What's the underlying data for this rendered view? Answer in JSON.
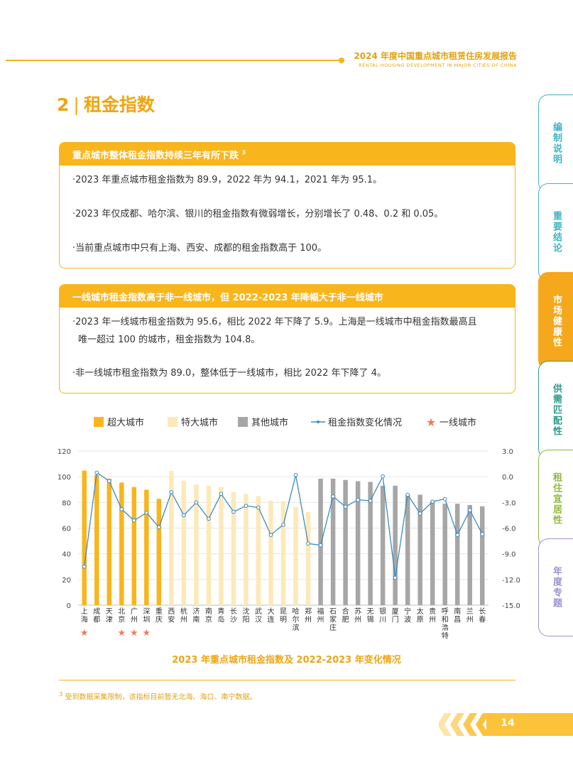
{
  "header": {
    "title": "2024 年度中国重点城市租赁住房发展报告",
    "subtitle": "RENTAL HOUSING DEVELOPMENT IN MAJOR CITIES OF CHINA"
  },
  "section": {
    "number": "2",
    "title": "租金指数"
  },
  "box1": {
    "heading": "重点城市整体租金指数持续三年有所下跌",
    "heading_sup": "3",
    "items": [
      "·2023 年重点城市租金指数为 89.9，2022 年为 94.1，2021 年为 95.1。",
      "·2023 年仅成都、哈尔滨、银川的租金指数有微弱增长，分别增长了 0.48、0.2 和 0.05。",
      "·当前重点城市中只有上海、西安、成都的租金指数高于 100。"
    ]
  },
  "box2": {
    "heading": "一线城市租金指数高于非一线城市，但 2022-2023 年降幅大于非一线城市",
    "items": [
      "·2023 年一线城市租金指数为 95.6，相比 2022 年下降了 5.9。上海是一线城市中租金指数最高且",
      "唯一超过 100 的城市，租金指数为 104.8。",
      "·非一线城市租金指数为 89.0，整体低于一线城市，相比 2022 年下降了 4。"
    ]
  },
  "side_tabs": [
    {
      "label": "编制说明",
      "color": "#3fb4c8",
      "active": false
    },
    {
      "label": "重要结论",
      "color": "#3fb4c8",
      "active": false
    },
    {
      "label": "市场健康性",
      "color": "#f5a81c",
      "active": true
    },
    {
      "label": "供需匹配性",
      "color": "#2b9b8c",
      "active": false
    },
    {
      "label": "租住宜居性",
      "color": "#8fb93a",
      "active": false
    },
    {
      "label": "年度专题",
      "color": "#9c93cf",
      "active": false
    }
  ],
  "chart_data": {
    "type": "bar",
    "categories": [
      "上海",
      "成都",
      "天津",
      "北京",
      "广州",
      "深圳",
      "重庆",
      "西安",
      "杭州",
      "济南",
      "南京",
      "青岛",
      "长沙",
      "沈阳",
      "武汉",
      "大连",
      "昆明",
      "哈尔滨",
      "郑州",
      "福州",
      "石家庄",
      "合肥",
      "苏州",
      "无锡",
      "银川",
      "厦门",
      "宁波",
      "太原",
      "贵州",
      "呼和浩特",
      "南昌",
      "兰州",
      "长春"
    ],
    "category_groups": [
      "超大",
      "超大",
      "超大",
      "超大",
      "超大",
      "超大",
      "超大",
      "特大",
      "特大",
      "特大",
      "特大",
      "特大",
      "特大",
      "特大",
      "特大",
      "特大",
      "特大",
      "特大",
      "特大",
      "其他",
      "其他",
      "其他",
      "其他",
      "其他",
      "其他",
      "其他",
      "其他",
      "其他",
      "其他",
      "其他",
      "其他",
      "其他",
      "其他"
    ],
    "tier1_cities": [
      "上海",
      "北京",
      "广州",
      "深圳"
    ],
    "series": [
      {
        "name": "租金指数",
        "axis": "left",
        "values": [
          104.8,
          101.5,
          98.5,
          95.5,
          92.0,
          89.9,
          82.8,
          104.5,
          97.0,
          94.0,
          93.0,
          92.0,
          88.0,
          86.5,
          85.0,
          81.5,
          81.0,
          76.5,
          72.5,
          98.5,
          98.5,
          97.5,
          96.5,
          96.0,
          93.0,
          93.0,
          86.0,
          86.0,
          81.0,
          79.0,
          79.0,
          78.0,
          77.0
        ]
      },
      {
        "name": "租金指数变化情况",
        "axis": "right",
        "values": [
          -10.5,
          0.48,
          -0.5,
          -3.8,
          -5.1,
          -4.2,
          -5.9,
          -1.8,
          -4.5,
          -3.0,
          -4.9,
          -2.0,
          -4.1,
          -3.4,
          -3.6,
          -6.8,
          -5.6,
          0.2,
          -7.8,
          -8.0,
          -2.3,
          -3.5,
          -2.7,
          -2.8,
          0.05,
          -11.8,
          -2.1,
          -4.3,
          -2.9,
          -2.6,
          -6.8,
          -3.9,
          -6.7
        ]
      }
    ],
    "legend": [
      "超大城市",
      "特大城市",
      "其他城市",
      "租金指数变化情况",
      "一线城市"
    ],
    "legend_position": "top",
    "y_left": {
      "range": [
        0,
        120
      ],
      "ticks": [
        "0",
        "20",
        "40",
        "60",
        "80",
        "100",
        "120"
      ]
    },
    "y_right": {
      "range": [
        -15,
        3
      ],
      "ticks": [
        "3.0",
        "0.0",
        "-3.0",
        "-6.0",
        "-9.0",
        "-12.0",
        "-15.0"
      ]
    },
    "colors": {
      "超大": "#f9b51c",
      "特大": "#fde9b8",
      "其他": "#a6a6a6",
      "line": "#3b8bc2",
      "star": "#ed7a5d"
    },
    "grid": true,
    "title": "2023 年重点城市租金指数及 2022-2023 年变化情况"
  },
  "footnote": {
    "sup": "3",
    "text": "受到数据采集限制，该指标目前暂无北海、海口、南宁数据。"
  },
  "page_number": "14"
}
